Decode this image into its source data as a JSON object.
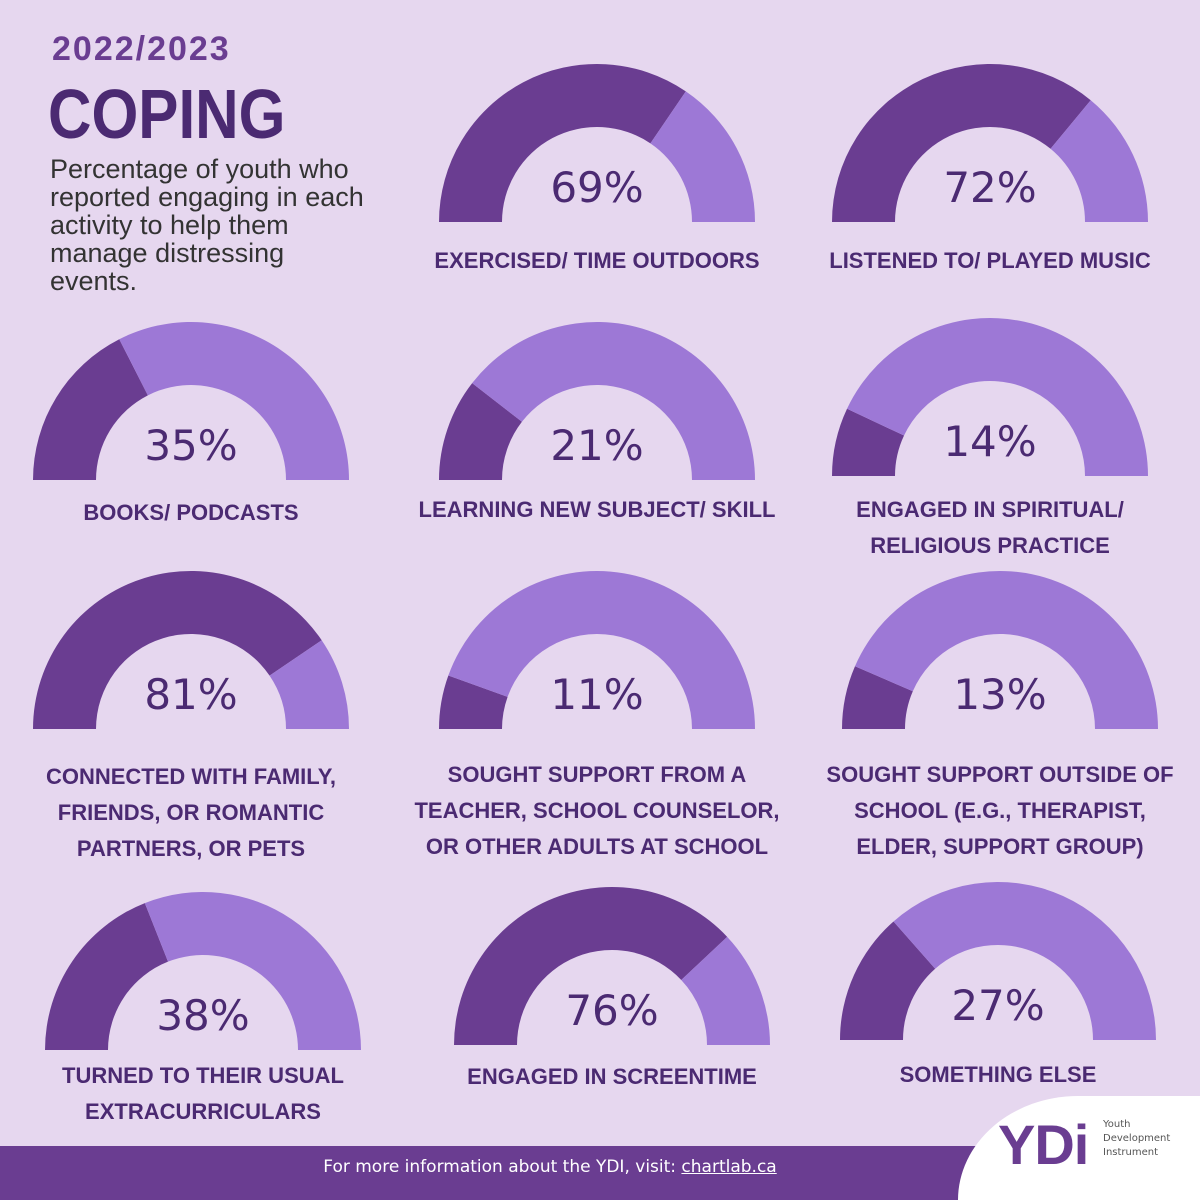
{
  "header": {
    "year": "2022/2023",
    "title": "COPING",
    "subtitle": "Percentage of youth who reported engaging in each activity to help them manage distressing events."
  },
  "colors": {
    "background": "#e6d7ef",
    "dark": "#6a3d91",
    "light": "#9d78d6",
    "text": "#4b2a72"
  },
  "chart_data": {
    "type": "gauge",
    "title": "COPING",
    "items": [
      {
        "label": "EXERCISED/  TIME OUTDOORS",
        "value": 69,
        "value_label": "69%"
      },
      {
        "label": "LISTENED TO/ PLAYED MUSIC",
        "value": 72,
        "value_label": "72%"
      },
      {
        "label": "BOOKS/  PODCASTS",
        "value": 35,
        "value_label": "35%"
      },
      {
        "label": "LEARNING NEW SUBJECT/ SKILL",
        "value": 21,
        "value_label": "21%"
      },
      {
        "label": "ENGAGED IN SPIRITUAL/ RELIGIOUS PRACTICE",
        "value": 14,
        "value_label": "14%"
      },
      {
        "label": "CONNECTED WITH FAMILY, FRIENDS, OR ROMANTIC PARTNERS, OR PETS",
        "value": 81,
        "value_label": "81%"
      },
      {
        "label": "SOUGHT SUPPORT FROM A TEACHER, SCHOOL COUNSELOR, OR OTHER ADULTS AT SCHOOL",
        "value": 11,
        "value_label": "11%"
      },
      {
        "label": "SOUGHT SUPPORT OUTSIDE OF SCHOOL (E.G., THERAPIST, ELDER, SUPPORT GROUP)",
        "value": 13,
        "value_label": "13%"
      },
      {
        "label": "TURNED TO THEIR  USUAL EXTRACURRICULARS",
        "value": 38,
        "value_label": "38%"
      },
      {
        "label": "ENGAGED IN SCREENTIME",
        "value": 76,
        "value_label": "76%"
      },
      {
        "label": "SOMETHING ELSE",
        "value": 27,
        "value_label": "27%"
      }
    ]
  },
  "footer": {
    "text": "For more information about the YDI, visit:",
    "link": "chartlab.ca"
  },
  "logo": {
    "mark": "YDi",
    "line1": "Youth",
    "line2": "Development",
    "line3": "Instrument"
  }
}
